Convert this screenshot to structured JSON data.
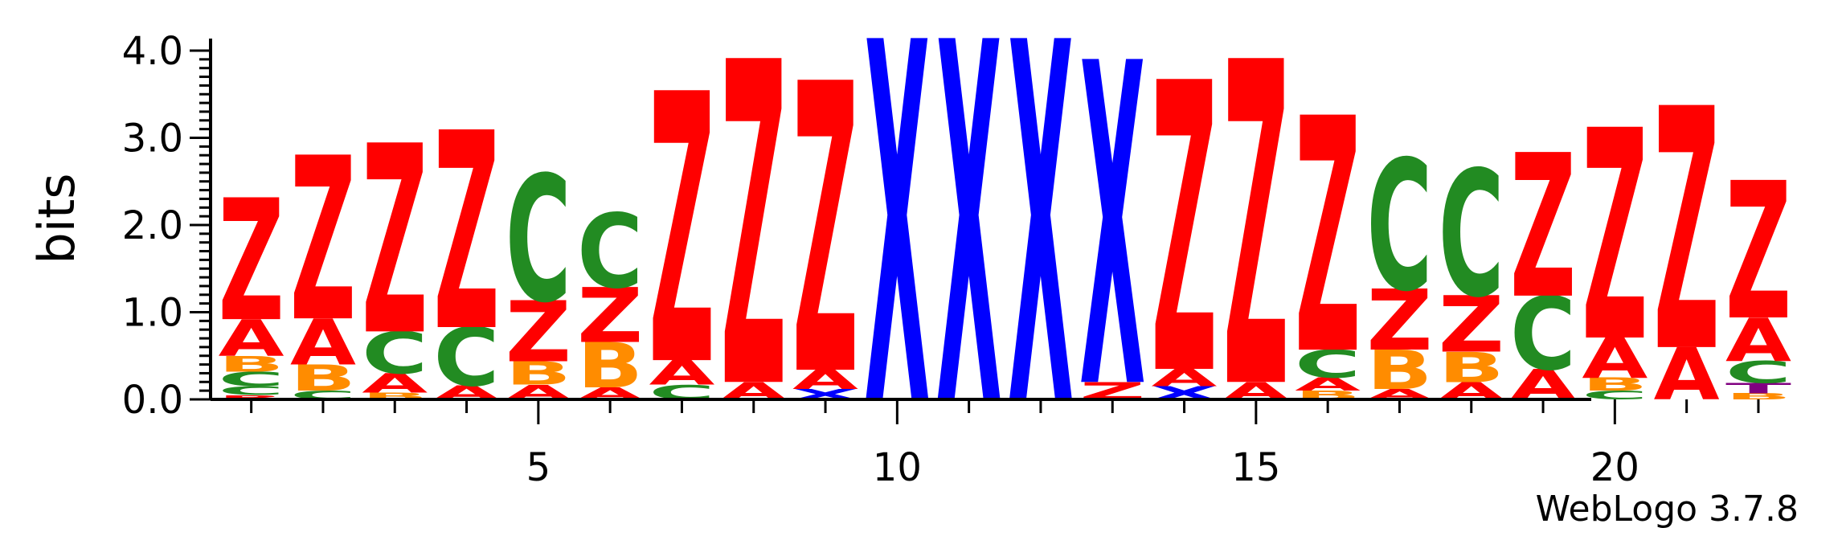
{
  "chart_data": {
    "type": "sequence-logo",
    "ylabel": "bits",
    "ylim": [
      0,
      4.0
    ],
    "y_ticks": [
      "0.0",
      "1.0",
      "2.0",
      "3.0",
      "4.0"
    ],
    "x_ticks": [
      5,
      10,
      15,
      20
    ],
    "credit": "WebLogo 3.7.8",
    "colors": {
      "Z": "#ff0000",
      "A": "#ff0000",
      "C": "#228b22",
      "B": "#ff8c00",
      "X": "#0000ff",
      "T": "#800080"
    },
    "positions": [
      {
        "pos": 1,
        "stack": [
          [
            "R",
            0.05
          ],
          [
            "C",
            0.1
          ],
          [
            "C",
            0.17
          ],
          [
            "B",
            0.18
          ],
          [
            "A",
            0.42
          ],
          [
            "Z",
            1.4
          ]
        ]
      },
      {
        "pos": 2,
        "stack": [
          [
            "C",
            0.1
          ],
          [
            "B",
            0.3
          ],
          [
            "A",
            0.53
          ],
          [
            "Z",
            1.88
          ]
        ]
      },
      {
        "pos": 3,
        "stack": [
          [
            "B",
            0.08
          ],
          [
            "A",
            0.22
          ],
          [
            "C",
            0.48
          ],
          [
            "Z",
            2.17
          ]
        ]
      },
      {
        "pos": 4,
        "stack": [
          [
            "A",
            0.16
          ],
          [
            "C",
            0.67
          ],
          [
            "Z",
            2.27
          ]
        ]
      },
      {
        "pos": 5,
        "stack": [
          [
            "A",
            0.17
          ],
          [
            "B",
            0.27
          ],
          [
            "Z",
            0.7
          ],
          [
            "C",
            1.45
          ]
        ]
      },
      {
        "pos": 6,
        "stack": [
          [
            "A",
            0.14
          ],
          [
            "B",
            0.52
          ],
          [
            "Z",
            0.63
          ],
          [
            "C",
            0.85
          ]
        ]
      },
      {
        "pos": 7,
        "stack": [
          [
            "C",
            0.17
          ],
          [
            "A",
            0.28
          ],
          [
            "Z",
            3.1
          ]
        ]
      },
      {
        "pos": 8,
        "stack": [
          [
            "A",
            0.2
          ],
          [
            "Z",
            3.72
          ]
        ]
      },
      {
        "pos": 9,
        "stack": [
          [
            "X",
            0.12
          ],
          [
            "A",
            0.22
          ],
          [
            "Z",
            3.33
          ]
        ]
      },
      {
        "pos": 10,
        "stack": [
          [
            "X",
            4.15
          ]
        ]
      },
      {
        "pos": 11,
        "stack": [
          [
            "X",
            4.15
          ]
        ]
      },
      {
        "pos": 12,
        "stack": [
          [
            "X",
            4.15
          ]
        ]
      },
      {
        "pos": 13,
        "stack": [
          [
            "Z",
            0.2
          ],
          [
            "X",
            3.71
          ]
        ]
      },
      {
        "pos": 14,
        "stack": [
          [
            "X",
            0.15
          ],
          [
            "A",
            0.2
          ],
          [
            "Z",
            3.33
          ]
        ]
      },
      {
        "pos": 15,
        "stack": [
          [
            "A",
            0.2
          ],
          [
            "Z",
            3.72
          ]
        ]
      },
      {
        "pos": 16,
        "stack": [
          [
            "B",
            0.1
          ],
          [
            "A",
            0.15
          ],
          [
            "C",
            0.32
          ],
          [
            "Z",
            2.7
          ]
        ]
      },
      {
        "pos": 17,
        "stack": [
          [
            "A",
            0.12
          ],
          [
            "B",
            0.45
          ],
          [
            "Z",
            0.7
          ],
          [
            "C",
            1.5
          ]
        ]
      },
      {
        "pos": 18,
        "stack": [
          [
            "A",
            0.2
          ],
          [
            "B",
            0.35
          ],
          [
            "Z",
            0.65
          ],
          [
            "C",
            1.45
          ]
        ]
      },
      {
        "pos": 19,
        "stack": [
          [
            "A",
            0.35
          ],
          [
            "C",
            0.84
          ],
          [
            "Z",
            1.65
          ]
        ]
      },
      {
        "pos": 20,
        "stack": [
          [
            "C",
            0.1
          ],
          [
            "B",
            0.15
          ],
          [
            "A",
            0.46
          ],
          [
            "Z",
            2.42
          ]
        ]
      },
      {
        "pos": 21,
        "stack": [
          [
            "A",
            0.6
          ],
          [
            "Z",
            2.78
          ]
        ]
      },
      {
        "pos": 22,
        "stack": [
          [
            "B",
            0.07
          ],
          [
            "T",
            0.12
          ],
          [
            "C",
            0.25
          ],
          [
            "A",
            0.5
          ],
          [
            "Z",
            1.58
          ]
        ]
      }
    ]
  }
}
